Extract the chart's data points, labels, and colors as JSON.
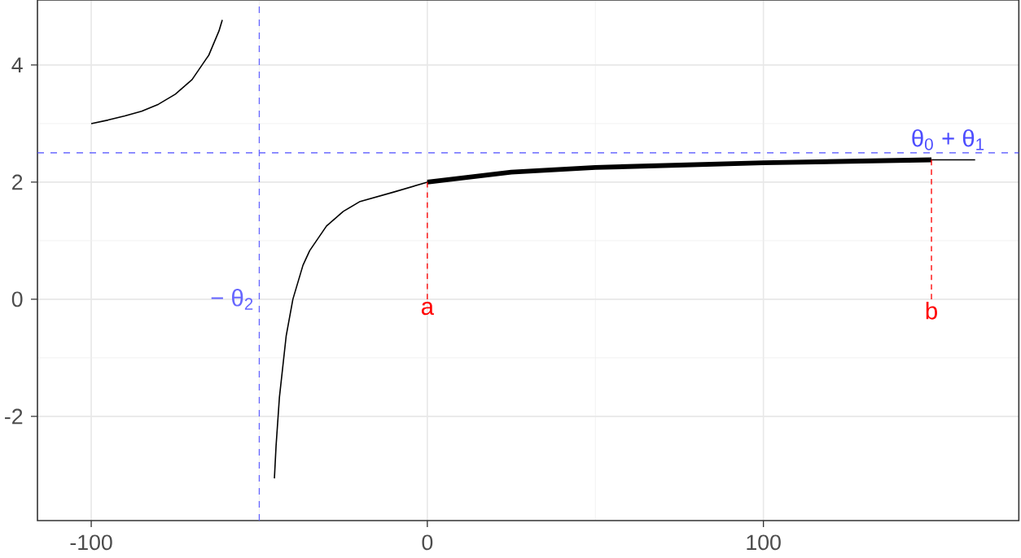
{
  "chart_data": {
    "type": "line",
    "xlim": [
      -116,
      176
    ],
    "ylim": [
      -3.78,
      5.11
    ],
    "xticks": [
      -100,
      0,
      100
    ],
    "yticks": [
      -2,
      0,
      2,
      4
    ],
    "grid": true,
    "marker": "none",
    "series": [
      {
        "color": "#000000",
        "x": [
          -100,
          -95,
          -90,
          -85,
          -80,
          -75,
          -70,
          -65,
          -62,
          -61
        ],
        "values": [
          3.0,
          3.06,
          3.13,
          3.21,
          3.33,
          3.5,
          3.75,
          4.17,
          4.58,
          4.77
        ]
      },
      {
        "color": "#000000",
        "x": [
          -45.5,
          -45,
          -44,
          -42,
          -40,
          -37,
          -35,
          -30,
          -25,
          -20,
          -10,
          0,
          25,
          50,
          100,
          150,
          163
        ],
        "values": [
          -3.06,
          -2.5,
          -1.67,
          -0.63,
          0,
          0.58,
          0.83,
          1.25,
          1.5,
          1.67,
          1.83,
          2.0,
          2.17,
          2.25,
          2.33,
          2.38,
          2.38
        ]
      },
      {
        "color": "#000000",
        "x": [
          0,
          25,
          50,
          100,
          150
        ],
        "values": [
          2.0,
          2.17,
          2.25,
          2.33,
          2.38
        ]
      },
      {
        "color": "#ff0000",
        "line_style": "dashed",
        "x": [
          0,
          0
        ],
        "values": [
          0,
          2.0
        ]
      },
      {
        "color": "#ff0000",
        "line_style": "dashed",
        "x": [
          150,
          150
        ],
        "values": [
          0,
          2.38
        ]
      }
    ],
    "ref_lines": [
      {
        "axis": "y",
        "value": 2.5,
        "label": "θ$_{0}$ + θ$_{1}$",
        "color": "#4d4dff",
        "line_style": "dashed"
      },
      {
        "axis": "x",
        "value": -50,
        "label": "− θ$_{2}$",
        "color": "#6666ff",
        "line_style": "dashed"
      }
    ],
    "annotations": [
      "a",
      "b"
    ]
  }
}
